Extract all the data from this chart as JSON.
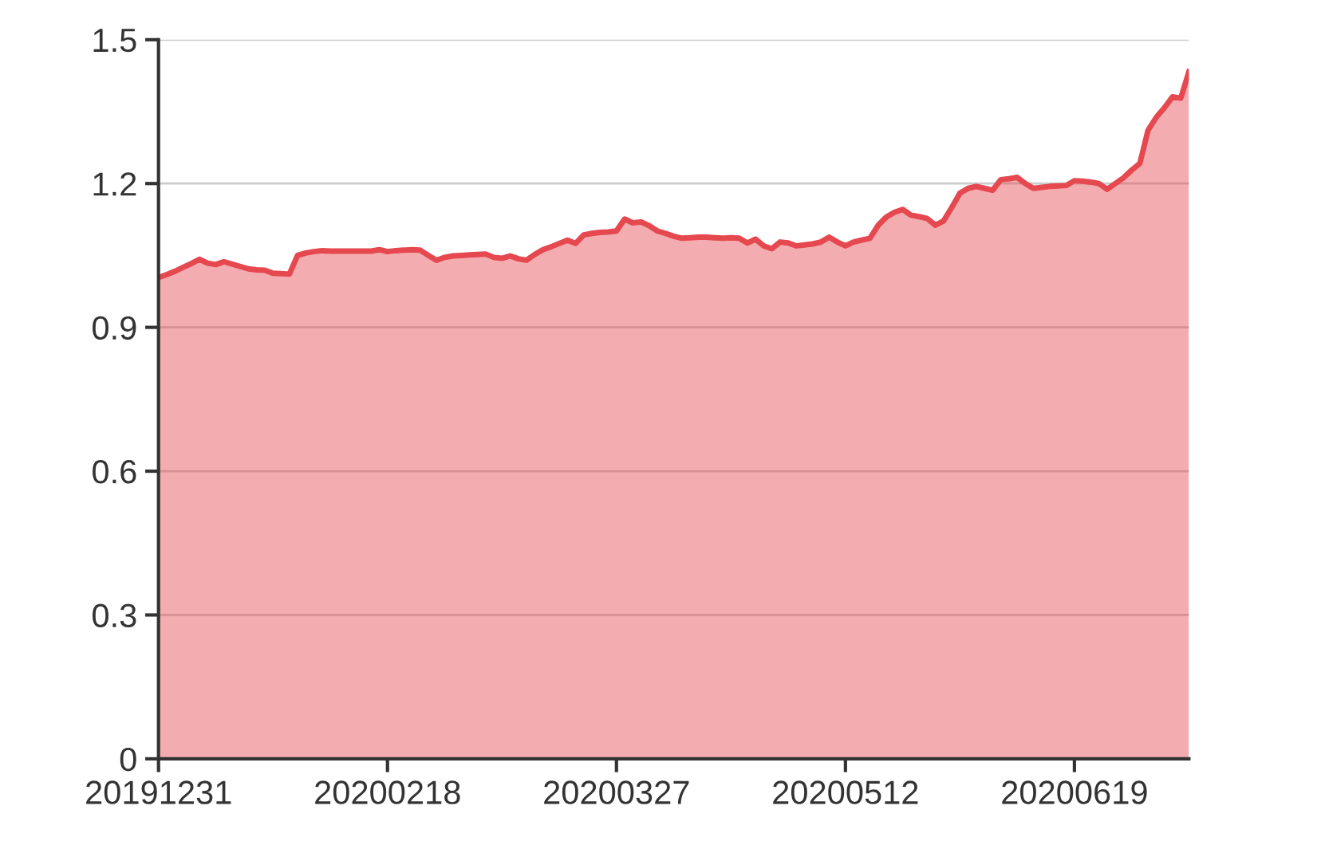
{
  "chart_data": {
    "type": "area",
    "categories": [
      "20191231",
      null,
      null,
      null,
      null,
      null,
      null,
      null,
      null,
      null,
      null,
      null,
      null,
      null,
      null,
      null,
      null,
      null,
      null,
      null,
      null,
      null,
      null,
      null,
      null,
      null,
      null,
      null,
      "20200218",
      null,
      null,
      null,
      null,
      null,
      null,
      null,
      null,
      null,
      null,
      null,
      null,
      null,
      null,
      null,
      null,
      null,
      null,
      null,
      null,
      null,
      null,
      null,
      null,
      null,
      null,
      null,
      "20200327",
      null,
      null,
      null,
      null,
      null,
      null,
      null,
      null,
      null,
      null,
      null,
      null,
      null,
      null,
      null,
      null,
      null,
      null,
      null,
      null,
      null,
      null,
      null,
      null,
      null,
      null,
      null,
      "20200512",
      null,
      null,
      null,
      null,
      null,
      null,
      null,
      null,
      null,
      null,
      null,
      null,
      null,
      null,
      null,
      null,
      null,
      null,
      null,
      null,
      null,
      null,
      null,
      null,
      null,
      null,
      null,
      "20200619",
      null,
      null,
      null,
      null,
      null,
      null,
      null,
      null,
      null,
      null,
      null,
      null,
      null,
      null
    ],
    "series": [
      {
        "color": "#e5484f",
        "values": [
          1.004,
          1.01,
          1.017,
          1.025,
          1.033,
          1.042,
          1.034,
          1.031,
          1.037,
          1.032,
          1.027,
          1.022,
          1.02,
          1.019,
          1.013,
          1.012,
          1.011,
          1.05,
          1.055,
          1.058,
          1.06,
          1.059,
          1.059,
          1.059,
          1.059,
          1.059,
          1.059,
          1.062,
          1.058,
          1.06,
          1.061,
          1.062,
          1.061,
          1.05,
          1.04,
          1.046,
          1.049,
          1.05,
          1.051,
          1.052,
          1.053,
          1.046,
          1.044,
          1.049,
          1.043,
          1.04,
          1.052,
          1.062,
          1.068,
          1.075,
          1.082,
          1.075,
          1.093,
          1.096,
          1.098,
          1.099,
          1.101,
          1.126,
          1.118,
          1.12,
          1.112,
          1.101,
          1.096,
          1.09,
          1.086,
          1.087,
          1.088,
          1.088,
          1.087,
          1.086,
          1.087,
          1.086,
          1.076,
          1.084,
          1.07,
          1.064,
          1.078,
          1.076,
          1.07,
          1.072,
          1.074,
          1.078,
          1.088,
          1.078,
          1.07,
          1.078,
          1.082,
          1.086,
          1.113,
          1.13,
          1.14,
          1.146,
          1.134,
          1.131,
          1.127,
          1.113,
          1.122,
          1.15,
          1.18,
          1.19,
          1.194,
          1.19,
          1.186,
          1.208,
          1.21,
          1.213,
          1.2,
          1.19,
          1.192,
          1.194,
          1.195,
          1.196,
          1.206,
          1.205,
          1.203,
          1.2,
          1.188,
          1.2,
          1.212,
          1.228,
          1.242,
          1.311,
          1.338,
          1.358,
          1.381,
          1.378,
          1.433
        ]
      }
    ],
    "ylim": [
      0,
      1.5
    ],
    "yticks": [
      0,
      0.3,
      0.6,
      0.9,
      1.2,
      1.5
    ],
    "grid": "y",
    "legend": false
  }
}
